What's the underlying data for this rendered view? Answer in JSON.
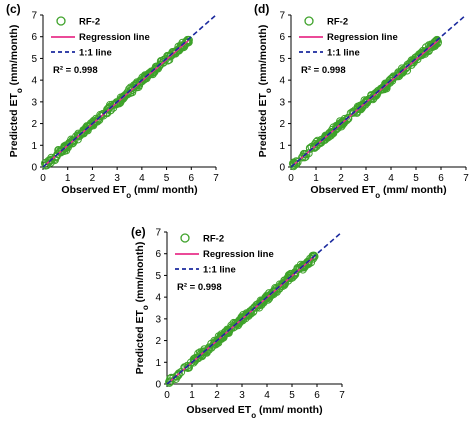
{
  "chart_data": [
    {
      "type": "scatter",
      "panel_label": "(c)",
      "xlabel": "Observed ET",
      "xlabel_sub": "o",
      "xlabel_unit": " (mm/ month)",
      "ylabel": "Predicted ET",
      "ylabel_sub": "o",
      "ylabel_unit": " (mm/month)",
      "xlim": [
        0,
        7
      ],
      "ylim": [
        0,
        7
      ],
      "xticks": [
        "0",
        "1",
        "2",
        "3",
        "4",
        "5",
        "6",
        "7"
      ],
      "yticks": [
        "0",
        "1",
        "2",
        "3",
        "4",
        "5",
        "6",
        "7"
      ],
      "legend": [
        {
          "label": "RF-2",
          "marker": "circle-open",
          "color": "#3ea22a"
        },
        {
          "label": "Regression line",
          "style": "solid",
          "color": "#e8308a"
        },
        {
          "label": "1:1 line",
          "style": "dashed",
          "color": "#1b2a9e"
        }
      ],
      "annotation": "R² = 0.998",
      "series": [
        {
          "name": "RF-2",
          "x_range": [
            0.05,
            5.9
          ],
          "y_range": [
            0.05,
            5.8
          ],
          "regression_slope": 0.99,
          "regression_intercept": 0.0
        }
      ]
    },
    {
      "type": "scatter",
      "panel_label": "(d)",
      "xlabel": "Observed ET",
      "xlabel_sub": "o",
      "xlabel_unit": " (mm/ month)",
      "ylabel": "Predicted ET",
      "ylabel_sub": "o",
      "ylabel_unit": " (mm/month)",
      "xlim": [
        0,
        7
      ],
      "ylim": [
        0,
        7
      ],
      "xticks": [
        "0",
        "1",
        "2",
        "3",
        "4",
        "5",
        "6",
        "7"
      ],
      "yticks": [
        "0",
        "1",
        "2",
        "3",
        "4",
        "5",
        "6",
        "7"
      ],
      "legend": [
        {
          "label": "RF-2",
          "marker": "circle-open",
          "color": "#3ea22a"
        },
        {
          "label": "Regression line",
          "style": "solid",
          "color": "#e8308a"
        },
        {
          "label": "1:1 line",
          "style": "dashed",
          "color": "#1b2a9e"
        }
      ],
      "annotation": "R² = 0.998",
      "series": [
        {
          "name": "RF-2",
          "x_range": [
            0.05,
            5.9
          ],
          "y_range": [
            0.05,
            5.8
          ],
          "regression_slope": 0.99,
          "regression_intercept": 0.0
        }
      ]
    },
    {
      "type": "scatter",
      "panel_label": "(e)",
      "xlabel": "Observed ET",
      "xlabel_sub": "o",
      "xlabel_unit": " (mm/ month)",
      "ylabel": "Predicted ET",
      "ylabel_sub": "o",
      "ylabel_unit": " (mm/month)",
      "xlim": [
        0,
        7
      ],
      "ylim": [
        0,
        7
      ],
      "xticks": [
        "0",
        "1",
        "2",
        "3",
        "4",
        "5",
        "6",
        "7"
      ],
      "yticks": [
        "0",
        "1",
        "2",
        "3",
        "4",
        "5",
        "6",
        "7"
      ],
      "legend": [
        {
          "label": "RF-2",
          "marker": "circle-open",
          "color": "#3ea22a"
        },
        {
          "label": "Regression line",
          "style": "solid",
          "color": "#e8308a"
        },
        {
          "label": "1:1 line",
          "style": "dashed",
          "color": "#1b2a9e"
        }
      ],
      "annotation": "R² = 0.998",
      "series": [
        {
          "name": "RF-2",
          "x_range": [
            0.05,
            5.9
          ],
          "y_range": [
            0.05,
            5.85
          ],
          "regression_slope": 0.995,
          "regression_intercept": 0.0
        }
      ]
    }
  ]
}
